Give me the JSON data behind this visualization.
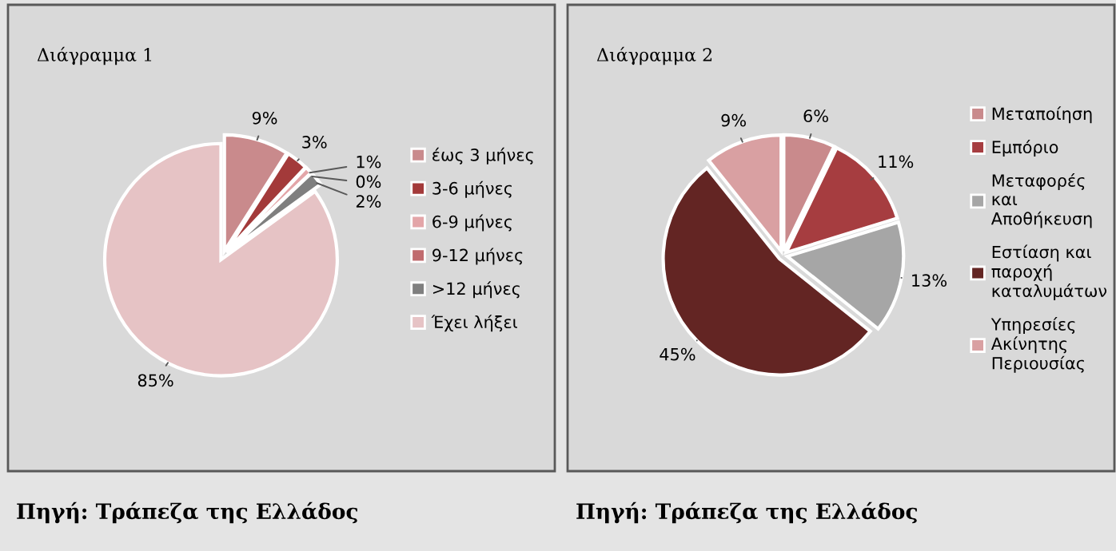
{
  "chart_data": [
    {
      "type": "pie",
      "title": "Διάγραμμα 1",
      "categories": [
        "έως 3 μήνες",
        "3-6 μήνες",
        "6-9 μήνες",
        "9-12 μήνες",
        ">12 μήνες",
        "Έχει λήξει"
      ],
      "values": [
        9,
        3,
        1,
        0,
        2,
        85
      ],
      "value_labels": [
        "9%",
        "3%",
        "1%",
        "0%",
        "2%",
        "85%"
      ],
      "colors": [
        "#c98a8c",
        "#a33a3a",
        "#e3a5a8",
        "#c06b6e",
        "#7f7f7f",
        "#e6c3c5"
      ],
      "legend": "right",
      "annotations": [
        "Πηγή: Τράπεζα της Ελλάδος"
      ]
    },
    {
      "type": "pie",
      "title": "Διάγραμμα 2",
      "categories": [
        "Μεταποίηση",
        "Εμπόριο",
        "Μεταφορές και Αποθήκευση",
        "Εστίαση και παροχή καταλυμάτων",
        "Υπηρεσίες Ακίνητης Περιουσίας"
      ],
      "values": [
        6,
        11,
        13,
        45,
        9
      ],
      "value_labels": [
        "6%",
        "11%",
        "13%",
        "45%",
        "9%"
      ],
      "colors": [
        "#c98a8c",
        "#a63d40",
        "#a6a6a6",
        "#632523",
        "#d9a0a2"
      ],
      "legend": "right",
      "annotations": [
        "Πηγή: Τράπεζα της Ελλάδος"
      ]
    }
  ]
}
